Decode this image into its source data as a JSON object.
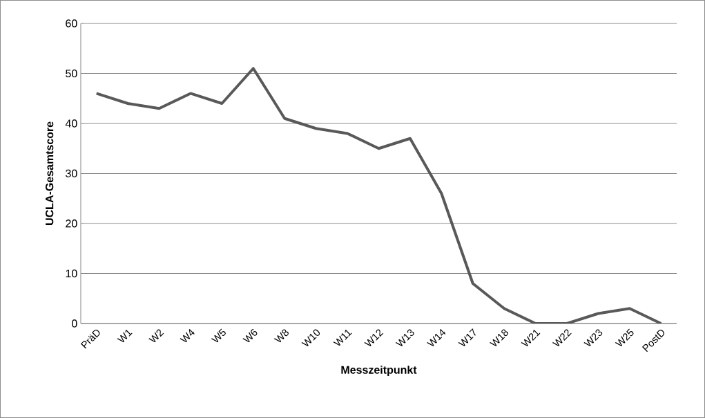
{
  "chart_data": {
    "type": "line",
    "xlabel": "Messzeitpunkt",
    "ylabel": "UCLA-Gesamtscore",
    "categories": [
      "PräD",
      "W1",
      "W2",
      "W4",
      "W5",
      "W6",
      "W8",
      "W10",
      "W11",
      "W12",
      "W13",
      "W14",
      "W17",
      "W18",
      "W21",
      "W22",
      "W23",
      "W25",
      "PostD"
    ],
    "series": [
      {
        "color": "#595959",
        "values": [
          46,
          44,
          43,
          46,
          44,
          51,
          41,
          39,
          38,
          35,
          37,
          26,
          8,
          3,
          0,
          0,
          2,
          3,
          0
        ]
      }
    ],
    "ylim": [
      0,
      60
    ],
    "yticks": [
      0,
      10,
      20,
      30,
      40,
      50,
      60
    ],
    "grid": "y",
    "marker": "none",
    "line_style": "solid"
  }
}
